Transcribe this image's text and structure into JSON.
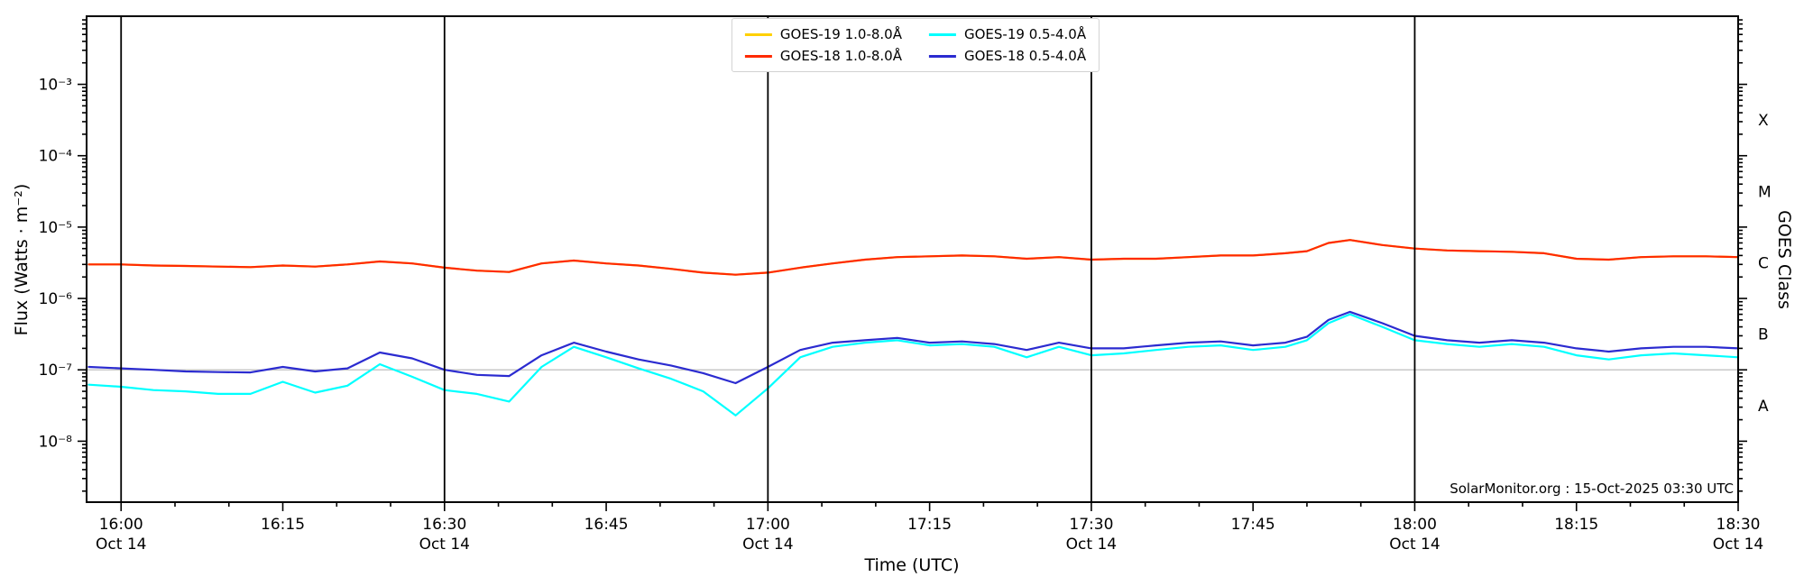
{
  "chart_data": {
    "type": "line",
    "title": "",
    "xlabel": "Time (UTC)",
    "ylabel": "Flux (Watts · m⁻²)",
    "right_axis_label": "GOES Class",
    "x_units": "minutes after 16:00 UTC on Oct 14",
    "x": [
      -3,
      0,
      3,
      6,
      9,
      12,
      15,
      18,
      21,
      24,
      27,
      30,
      33,
      36,
      39,
      42,
      45,
      48,
      51,
      54,
      57,
      60,
      63,
      66,
      69,
      72,
      75,
      78,
      81,
      84,
      87,
      90,
      93,
      96,
      99,
      102,
      105,
      108,
      110,
      112,
      114,
      117,
      120,
      123,
      126,
      129,
      132,
      135,
      138,
      141,
      144,
      147,
      150
    ],
    "series": [
      {
        "name": "GOES-19 1.0-8.0Å",
        "color": "#ffd000",
        "values": [
          3e-06,
          3e-06,
          2.9e-06,
          2.85e-06,
          2.8e-06,
          2.75e-06,
          2.9e-06,
          2.8e-06,
          3e-06,
          3.3e-06,
          3.1e-06,
          2.7e-06,
          2.45e-06,
          2.35e-06,
          3.1e-06,
          3.4e-06,
          3.1e-06,
          2.9e-06,
          2.6e-06,
          2.3e-06,
          2.15e-06,
          2.3e-06,
          2.7e-06,
          3.1e-06,
          3.5e-06,
          3.8e-06,
          3.9e-06,
          4e-06,
          3.9e-06,
          3.6e-06,
          3.8e-06,
          3.5e-06,
          3.6e-06,
          3.6e-06,
          3.8e-06,
          4e-06,
          4e-06,
          4.3e-06,
          4.6e-06,
          6e-06,
          6.6e-06,
          5.6e-06,
          5e-06,
          4.7e-06,
          4.6e-06,
          4.5e-06,
          4.3e-06,
          3.6e-06,
          3.5e-06,
          3.8e-06,
          3.9e-06,
          3.9e-06,
          3.8e-06
        ]
      },
      {
        "name": "GOES-18 1.0-8.0Å",
        "color": "#ff2a00",
        "values": [
          3e-06,
          3e-06,
          2.9e-06,
          2.85e-06,
          2.8e-06,
          2.75e-06,
          2.9e-06,
          2.8e-06,
          3e-06,
          3.3e-06,
          3.1e-06,
          2.7e-06,
          2.45e-06,
          2.35e-06,
          3.1e-06,
          3.4e-06,
          3.1e-06,
          2.9e-06,
          2.6e-06,
          2.3e-06,
          2.15e-06,
          2.3e-06,
          2.7e-06,
          3.1e-06,
          3.5e-06,
          3.8e-06,
          3.9e-06,
          4e-06,
          3.9e-06,
          3.6e-06,
          3.8e-06,
          3.5e-06,
          3.6e-06,
          3.6e-06,
          3.8e-06,
          4e-06,
          4e-06,
          4.3e-06,
          4.6e-06,
          6e-06,
          6.6e-06,
          5.6e-06,
          5e-06,
          4.7e-06,
          4.6e-06,
          4.5e-06,
          4.3e-06,
          3.6e-06,
          3.5e-06,
          3.8e-06,
          3.9e-06,
          3.9e-06,
          3.8e-06
        ]
      },
      {
        "name": "GOES-19 0.5-4.0Å",
        "color": "#00ffff",
        "values": [
          6.2e-08,
          5.8e-08,
          5.2e-08,
          5e-08,
          4.6e-08,
          4.6e-08,
          6.8e-08,
          4.8e-08,
          6e-08,
          1.2e-07,
          8e-08,
          5.2e-08,
          4.6e-08,
          3.6e-08,
          1.1e-07,
          2.1e-07,
          1.5e-07,
          1.05e-07,
          7.5e-08,
          5e-08,
          2.3e-08,
          5.5e-08,
          1.5e-07,
          2.1e-07,
          2.4e-07,
          2.6e-07,
          2.2e-07,
          2.3e-07,
          2.1e-07,
          1.5e-07,
          2.1e-07,
          1.6e-07,
          1.7e-07,
          1.9e-07,
          2.1e-07,
          2.2e-07,
          1.9e-07,
          2.1e-07,
          2.6e-07,
          4.5e-07,
          6e-07,
          4e-07,
          2.6e-07,
          2.3e-07,
          2.1e-07,
          2.3e-07,
          2.1e-07,
          1.6e-07,
          1.4e-07,
          1.6e-07,
          1.7e-07,
          1.6e-07,
          1.5e-07
        ]
      },
      {
        "name": "GOES-18 0.5-4.0Å",
        "color": "#2b2bd0",
        "values": [
          1.1e-07,
          1.05e-07,
          1e-07,
          9.5e-08,
          9.3e-08,
          9.2e-08,
          1.1e-07,
          9.5e-08,
          1.05e-07,
          1.75e-07,
          1.45e-07,
          1e-07,
          8.5e-08,
          8.2e-08,
          1.6e-07,
          2.4e-07,
          1.8e-07,
          1.4e-07,
          1.15e-07,
          9e-08,
          6.5e-08,
          1.1e-07,
          1.9e-07,
          2.4e-07,
          2.6e-07,
          2.8e-07,
          2.4e-07,
          2.5e-07,
          2.3e-07,
          1.9e-07,
          2.4e-07,
          2e-07,
          2e-07,
          2.2e-07,
          2.4e-07,
          2.5e-07,
          2.2e-07,
          2.4e-07,
          2.9e-07,
          5e-07,
          6.5e-07,
          4.5e-07,
          3e-07,
          2.6e-07,
          2.4e-07,
          2.6e-07,
          2.4e-07,
          2e-07,
          1.8e-07,
          2e-07,
          2.1e-07,
          2.1e-07,
          2e-07
        ]
      }
    ],
    "x_range_minutes": [
      -3.2,
      150
    ],
    "y_log_range": [
      1.4e-09,
      0.009
    ],
    "x_ticks": [
      {
        "t": 0,
        "label": "16:00",
        "sub": "Oct 14"
      },
      {
        "t": 15,
        "label": "16:15",
        "sub": ""
      },
      {
        "t": 30,
        "label": "16:30",
        "sub": "Oct 14"
      },
      {
        "t": 45,
        "label": "16:45",
        "sub": ""
      },
      {
        "t": 60,
        "label": "17:00",
        "sub": "Oct 14"
      },
      {
        "t": 75,
        "label": "17:15",
        "sub": ""
      },
      {
        "t": 90,
        "label": "17:30",
        "sub": "Oct 14"
      },
      {
        "t": 105,
        "label": "17:45",
        "sub": ""
      },
      {
        "t": 120,
        "label": "18:00",
        "sub": "Oct 14"
      },
      {
        "t": 135,
        "label": "18:15",
        "sub": ""
      },
      {
        "t": 150,
        "label": "18:30",
        "sub": "Oct 14"
      }
    ],
    "x_minor_step_minutes": 5,
    "y_ticks": [
      {
        "exp": -3,
        "label": "10⁻³"
      },
      {
        "exp": -4,
        "label": "10⁻⁴"
      },
      {
        "exp": -5,
        "label": "10⁻⁵"
      },
      {
        "exp": -6,
        "label": "10⁻⁶"
      },
      {
        "exp": -7,
        "label": "10⁻⁷"
      },
      {
        "exp": -8,
        "label": "10⁻⁸"
      }
    ],
    "goes_classes": [
      {
        "label": "X",
        "flux": 0.000316
      },
      {
        "label": "M",
        "flux": 3.16e-05
      },
      {
        "label": "C",
        "flux": 3.16e-06
      },
      {
        "label": "B",
        "flux": 3.16e-07
      },
      {
        "label": "A",
        "flux": 3.16e-08
      }
    ],
    "day_marker_lines_minutes": [
      0,
      30,
      60,
      90,
      120,
      150
    ],
    "threshold_line": {
      "flux": 1e-07,
      "color": "#c8c8c8"
    },
    "annotation": "SolarMonitor.org : 15-Oct-2025 03:30 UTC",
    "legend_position": "top-center",
    "grid": "off",
    "colors": {
      "axis": "#000000",
      "background": "#ffffff"
    }
  }
}
